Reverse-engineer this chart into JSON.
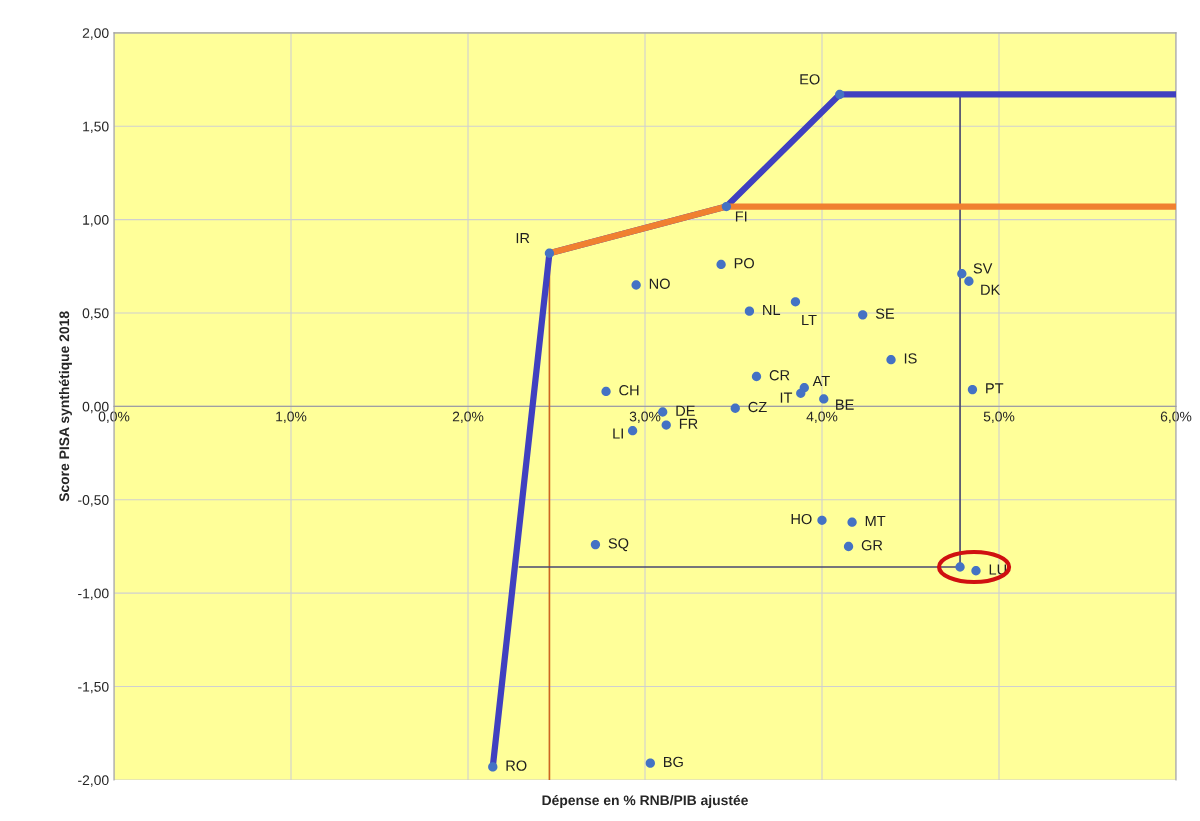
{
  "chart_data": {
    "type": "scatter",
    "xlabel": "Dépense en % RNB/PIB ajustée",
    "ylabel": "Score PISA synthétique 2018",
    "xlim": [
      0,
      6
    ],
    "ylim": [
      -2,
      2
    ],
    "xticks": [
      {
        "value": 0,
        "label": "0,0%"
      },
      {
        "value": 1,
        "label": "1,0%"
      },
      {
        "value": 2,
        "label": "2,0%"
      },
      {
        "value": 3,
        "label": "3,0%"
      },
      {
        "value": 4,
        "label": "4,0%"
      },
      {
        "value": 5,
        "label": "5,0%"
      },
      {
        "value": 6,
        "label": "6,0%"
      }
    ],
    "yticks": [
      {
        "value": -2,
        "label": "-2,00"
      },
      {
        "value": -1.5,
        "label": "-1,50"
      },
      {
        "value": -1,
        "label": "-1,00"
      },
      {
        "value": -0.5,
        "label": "-0,50"
      },
      {
        "value": 0,
        "label": "0,00"
      },
      {
        "value": 0.5,
        "label": "0,50"
      },
      {
        "value": 1,
        "label": "1,00"
      },
      {
        "value": 1.5,
        "label": "1,50"
      },
      {
        "value": 2,
        "label": "2,00"
      }
    ],
    "grid": true,
    "legend": false,
    "series": [
      {
        "type": "line",
        "color": "#cc6622",
        "x": [
          2.46,
          2.46
        ],
        "values": [
          0.82,
          -2.0
        ]
      },
      {
        "type": "line",
        "color": "#4a4a70",
        "x": [
          2.29,
          4.78,
          4.78
        ],
        "values": [
          -0.86,
          -0.86,
          1.67
        ]
      },
      {
        "type": "line",
        "color": "#4040c0",
        "x": [
          2.14,
          2.46,
          3.46,
          4.1,
          6.0
        ],
        "values": [
          -1.93,
          0.82,
          1.07,
          1.67,
          1.67
        ]
      },
      {
        "type": "line",
        "color": "#f08030",
        "x": [
          2.46,
          3.46,
          6.0
        ],
        "values": [
          0.82,
          1.07,
          1.07
        ]
      },
      {
        "color": "#4472c4",
        "marker": "circle",
        "x": [
          2.14,
          2.46,
          3.46,
          4.1,
          3.43,
          2.95,
          3.59,
          3.85,
          4.23,
          4.79,
          4.83,
          4.39,
          4.85,
          2.78,
          3.63,
          3.9,
          3.88,
          4.01,
          3.51,
          3.1,
          3.12,
          2.93,
          4.0,
          4.17,
          4.15,
          2.72,
          4.87,
          3.03,
          4.78
        ],
        "values": [
          -1.93,
          0.82,
          1.07,
          1.67,
          0.76,
          0.65,
          0.51,
          0.56,
          0.49,
          0.71,
          0.67,
          0.25,
          0.09,
          0.08,
          0.16,
          0.1,
          0.07,
          0.04,
          -0.01,
          -0.03,
          -0.1,
          -0.13,
          -0.61,
          -0.62,
          -0.75,
          -0.74,
          -0.88,
          -1.91,
          -0.86
        ]
      }
    ],
    "annotations": [
      {
        "text": "RO",
        "x": 2.14,
        "y": -1.93
      },
      {
        "text": "IR",
        "x": 2.46,
        "y": 0.82
      },
      {
        "text": "FI",
        "x": 3.46,
        "y": 1.07
      },
      {
        "text": "EO",
        "x": 4.1,
        "y": 1.67
      },
      {
        "text": "PO",
        "x": 3.43,
        "y": 0.76
      },
      {
        "text": "NO",
        "x": 2.95,
        "y": 0.65
      },
      {
        "text": "NL",
        "x": 3.59,
        "y": 0.51
      },
      {
        "text": "LT",
        "x": 3.85,
        "y": 0.56
      },
      {
        "text": "SE",
        "x": 4.23,
        "y": 0.49
      },
      {
        "text": "SV",
        "x": 4.79,
        "y": 0.71
      },
      {
        "text": "DK",
        "x": 4.83,
        "y": 0.67
      },
      {
        "text": "IS",
        "x": 4.39,
        "y": 0.25
      },
      {
        "text": "PT",
        "x": 4.85,
        "y": 0.09
      },
      {
        "text": "CH",
        "x": 2.78,
        "y": 0.08
      },
      {
        "text": "CR",
        "x": 3.63,
        "y": 0.16
      },
      {
        "text": "AT",
        "x": 3.9,
        "y": 0.1
      },
      {
        "text": "IT",
        "x": 3.88,
        "y": 0.07
      },
      {
        "text": "BE",
        "x": 4.01,
        "y": 0.04
      },
      {
        "text": "CZ",
        "x": 3.51,
        "y": -0.01
      },
      {
        "text": "DE",
        "x": 3.1,
        "y": -0.03
      },
      {
        "text": "FR",
        "x": 3.12,
        "y": -0.1
      },
      {
        "text": "LI",
        "x": 2.93,
        "y": -0.13
      },
      {
        "text": "HO",
        "x": 4.0,
        "y": -0.61
      },
      {
        "text": "MT",
        "x": 4.17,
        "y": -0.62
      },
      {
        "text": "GR",
        "x": 4.15,
        "y": -0.75
      },
      {
        "text": "SQ",
        "x": 2.72,
        "y": -0.74
      },
      {
        "text": "LU",
        "x": 4.87,
        "y": -0.88
      },
      {
        "text": "BG",
        "x": 3.03,
        "y": -1.91
      }
    ]
  }
}
